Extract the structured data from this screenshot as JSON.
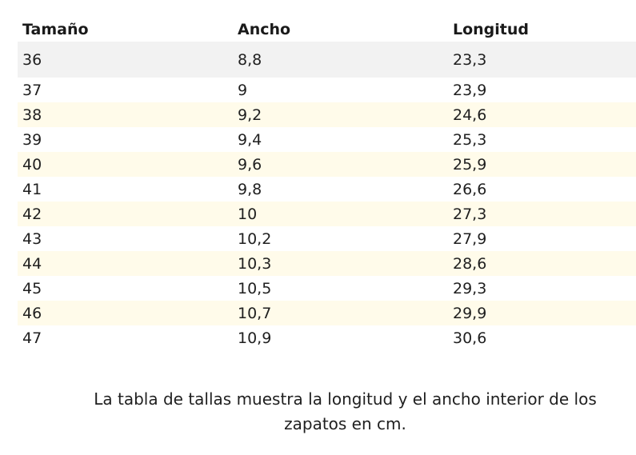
{
  "table": {
    "headers": [
      "Tamaño",
      "Ancho",
      "Longitud"
    ],
    "rows": [
      [
        "36",
        "8,8",
        "23,3"
      ],
      [
        "37",
        "9",
        "23,9"
      ],
      [
        "38",
        "9,2",
        "24,6"
      ],
      [
        "39",
        "9,4",
        "25,3"
      ],
      [
        "40",
        "9,6",
        "25,9"
      ],
      [
        "41",
        "9,8",
        "26,6"
      ],
      [
        "42",
        "10",
        "27,3"
      ],
      [
        "43",
        "10,2",
        "27,9"
      ],
      [
        "44",
        "10,3",
        "28,6"
      ],
      [
        "45",
        "10,5",
        "29,3"
      ],
      [
        "46",
        "10,7",
        "29,9"
      ],
      [
        "47",
        "10,9",
        "30,6"
      ]
    ]
  },
  "caption": "La tabla de tallas muestra la longitud y el ancho interior de los zapatos en cm.",
  "colors": {
    "first_row_bg": "#f2f2f2",
    "alt_row_bg": "#fffbea",
    "text": "#1f1f1f"
  }
}
